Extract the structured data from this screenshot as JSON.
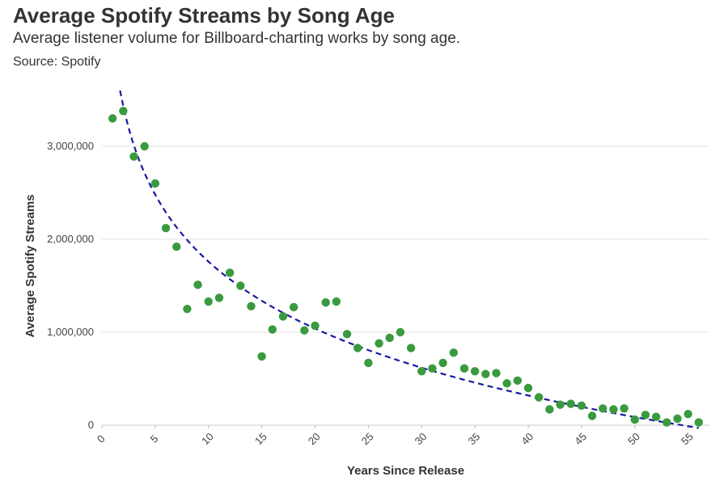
{
  "header": {
    "title": "Average Spotify Streams by Song Age",
    "subtitle": "Average listener volume for Billboard-charting works by song age.",
    "source": "Source: Spotify"
  },
  "chart_data": {
    "type": "scatter",
    "title": "Average Spotify Streams by Song Age",
    "subtitle": "Average listener volume for Billboard-charting works by song age.",
    "xlabel": "Years Since Release",
    "ylabel": "Average Spotify Streams",
    "xlim": [
      0,
      57
    ],
    "ylim": [
      0,
      3600000
    ],
    "x_ticks": [
      0,
      5,
      10,
      15,
      20,
      25,
      30,
      35,
      40,
      45,
      50,
      55
    ],
    "y_ticks": [
      0,
      1000000,
      2000000,
      3000000
    ],
    "y_tick_labels": [
      "0",
      "1,000,000",
      "2,000,000",
      "3,000,000"
    ],
    "grid": "horizontal",
    "point_color": "#3a9a3e",
    "trend_color": "#1a1aa0",
    "trendline": {
      "style": "dashed",
      "x": [
        1.7,
        56
      ],
      "shape": "logarithmic",
      "y_start": 3600000,
      "y_end": -30000
    },
    "points": [
      [
        1,
        3300000
      ],
      [
        2,
        3380000
      ],
      [
        3,
        2890000
      ],
      [
        4,
        3000000
      ],
      [
        5,
        2600000
      ],
      [
        6,
        2120000
      ],
      [
        7,
        1920000
      ],
      [
        8,
        1250000
      ],
      [
        9,
        1510000
      ],
      [
        10,
        1330000
      ],
      [
        11,
        1370000
      ],
      [
        12,
        1640000
      ],
      [
        13,
        1500000
      ],
      [
        14,
        1280000
      ],
      [
        15,
        740000
      ],
      [
        16,
        1030000
      ],
      [
        17,
        1170000
      ],
      [
        18,
        1270000
      ],
      [
        19,
        1020000
      ],
      [
        20,
        1070000
      ],
      [
        21,
        1320000
      ],
      [
        22,
        1330000
      ],
      [
        23,
        980000
      ],
      [
        24,
        830000
      ],
      [
        25,
        670000
      ],
      [
        26,
        880000
      ],
      [
        27,
        940000
      ],
      [
        28,
        1000000
      ],
      [
        29,
        830000
      ],
      [
        30,
        580000
      ],
      [
        31,
        610000
      ],
      [
        32,
        670000
      ],
      [
        33,
        780000
      ],
      [
        34,
        610000
      ],
      [
        35,
        580000
      ],
      [
        36,
        550000
      ],
      [
        37,
        560000
      ],
      [
        38,
        450000
      ],
      [
        39,
        480000
      ],
      [
        40,
        400000
      ],
      [
        41,
        300000
      ],
      [
        42,
        170000
      ],
      [
        43,
        220000
      ],
      [
        44,
        230000
      ],
      [
        45,
        210000
      ],
      [
        46,
        100000
      ],
      [
        47,
        180000
      ],
      [
        48,
        170000
      ],
      [
        49,
        180000
      ],
      [
        50,
        60000
      ],
      [
        51,
        110000
      ],
      [
        52,
        90000
      ],
      [
        53,
        30000
      ],
      [
        54,
        70000
      ],
      [
        55,
        120000
      ],
      [
        56,
        30000
      ]
    ]
  }
}
